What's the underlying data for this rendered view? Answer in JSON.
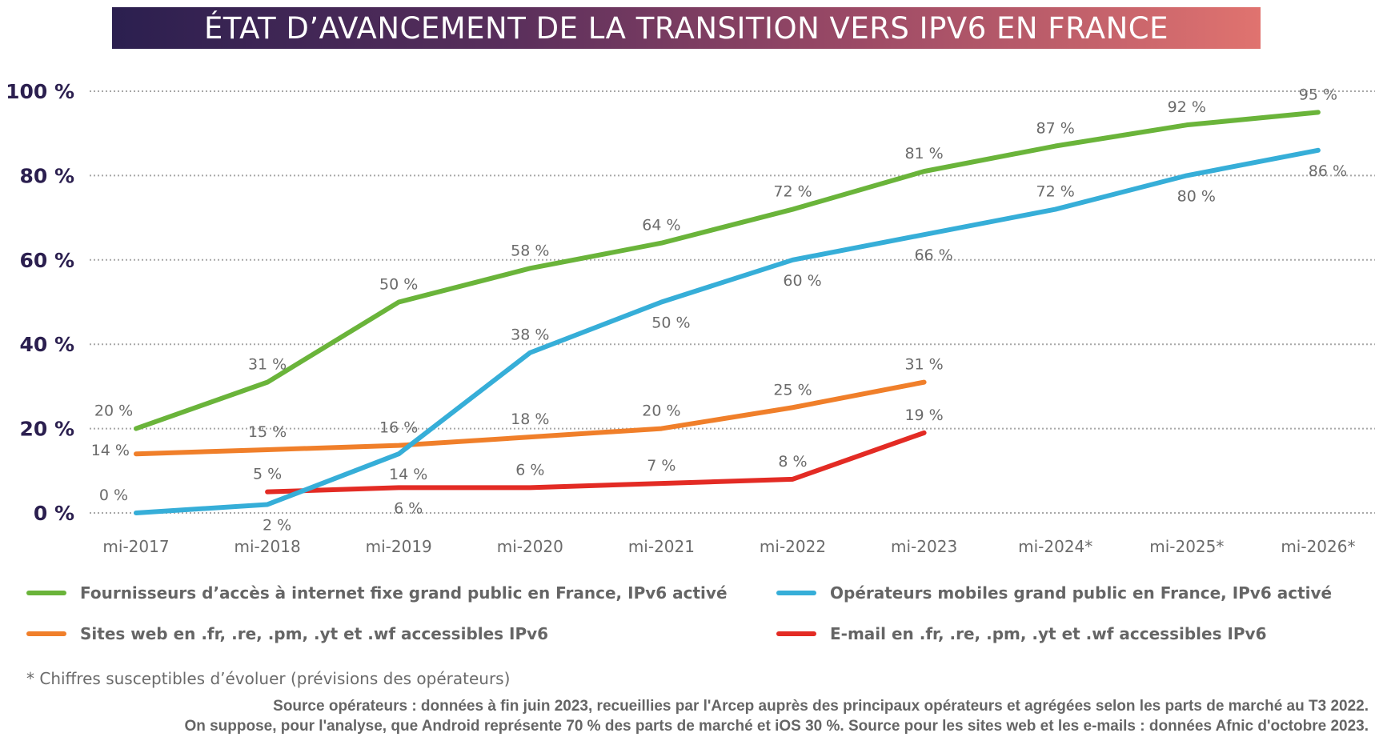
{
  "title": "ÉTAT D’AVANCEMENT DE LA TRANSITION VERS IPV6 EN FRANCE",
  "chart_data": {
    "type": "line",
    "title": "ÉTAT D’AVANCEMENT DE LA TRANSITION VERS IPV6 EN FRANCE",
    "xlabel": "",
    "ylabel": "",
    "categories": [
      "mi-2017",
      "mi-2018",
      "mi-2019",
      "mi-2020",
      "mi-2021",
      "mi-2022",
      "mi-2023",
      "mi-2024*",
      "mi-2025*",
      "mi-2026*"
    ],
    "ylim": [
      0,
      100
    ],
    "yticks": [
      0,
      20,
      40,
      60,
      80,
      100
    ],
    "ytick_labels": [
      "0 %",
      "20 %",
      "40 %",
      "60 %",
      "80 %",
      "100 %"
    ],
    "grid": true,
    "legend_position": "bottom",
    "series": [
      {
        "name": "Fournisseurs d’accès à internet fixe grand public en France, IPv6 activé",
        "color": "#6ab43a",
        "values": [
          20,
          31,
          50,
          58,
          64,
          72,
          81,
          87,
          92,
          95
        ],
        "labels": [
          "20 %",
          "31 %",
          "50 %",
          "58 %",
          "64 %",
          "72 %",
          "81 %",
          "87 %",
          "92 %",
          "95 %"
        ],
        "label_pos": [
          "above",
          "above",
          "above",
          "above",
          "above",
          "above",
          "above",
          "above",
          "above",
          "above"
        ]
      },
      {
        "name": "Opérateurs mobiles grand public en France, IPv6 activé",
        "color": "#36aed8",
        "values": [
          0,
          2,
          14,
          38,
          50,
          60,
          66,
          72,
          80,
          86
        ],
        "labels": [
          "0 %",
          "2 %",
          "14 %",
          "38 %",
          "50 %",
          "60 %",
          "66 %",
          "72 %",
          "80 %",
          "86 %"
        ],
        "label_pos": [
          "above",
          "below",
          "below",
          "above",
          "below",
          "below",
          "below",
          "above",
          "below",
          "below"
        ]
      },
      {
        "name": "Sites web en .fr, .re, .pm, .yt et .wf accessibles IPv6",
        "color": "#f07f2a",
        "values": [
          14,
          15,
          16,
          18,
          20,
          25,
          31,
          null,
          null,
          null
        ],
        "labels": [
          "14 %",
          "15 %",
          "16 %",
          "18 %",
          "20 %",
          "25 %",
          "31 %",
          null,
          null,
          null
        ],
        "label_pos": [
          "left",
          "above",
          "above",
          "above",
          "above",
          "above",
          "above",
          null,
          null,
          null
        ]
      },
      {
        "name": "E-mail en .fr, .re, .pm, .yt et .wf accessibles IPv6",
        "color": "#e32b24",
        "values": [
          null,
          5,
          6,
          6,
          7,
          8,
          19,
          null,
          null,
          null
        ],
        "labels": [
          null,
          "5 %",
          "6 %",
          "6 %",
          "7 %",
          "8 %",
          "19 %",
          null,
          null,
          null
        ],
        "label_pos": [
          null,
          "above",
          "below",
          "above",
          "above",
          "above",
          "above",
          null,
          null,
          null
        ]
      }
    ]
  },
  "legend": [
    {
      "label": "Fournisseurs d’accès à internet fixe grand public en France, IPv6 activé",
      "color": "#6ab43a"
    },
    {
      "label": "Opérateurs mobiles grand public en France, IPv6 activé",
      "color": "#36aed8"
    },
    {
      "label": "Sites web en .fr, .re, .pm, .yt et .wf accessibles IPv6",
      "color": "#f07f2a"
    },
    {
      "label": "E-mail en .fr, .re, .pm, .yt et .wf accessibles IPv6",
      "color": "#e32b24"
    }
  ],
  "footnote": "* Chiffres susceptibles d’évoluer (prévisions des opérateurs)",
  "sources": [
    "Source opérateurs : données à fin juin 2023, recueillies par l'Arcep auprès des principaux opérateurs et agrégées selon les parts de marché au T3 2022.",
    "On suppose, pour l'analyse, que Android représente 70 % des parts de marché et iOS 30 %. Source pour les sites web et les e-mails : données Afnic d'octobre 2023."
  ]
}
